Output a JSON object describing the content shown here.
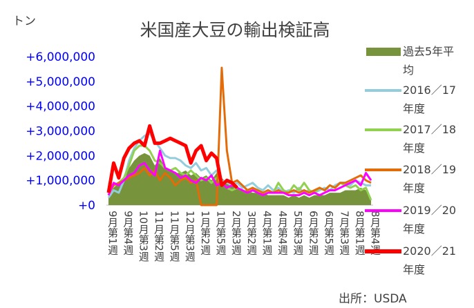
{
  "chart_data": {
    "type": "line",
    "title": "米国産大豆の輸出検証高",
    "unit_label": "トン",
    "source": "出所：USDA",
    "categories": [
      "9月第1週",
      null,
      null,
      "9月第4週",
      null,
      null,
      "10月第3週",
      null,
      null,
      "11月第2週",
      null,
      null,
      "11月第5週",
      null,
      null,
      "12月第3週",
      null,
      null,
      "1月第2週",
      null,
      null,
      "1月第5週",
      null,
      null,
      "2月第3週",
      null,
      null,
      "3月第2週",
      null,
      null,
      "4月第1週",
      null,
      null,
      "4月第4週",
      null,
      null,
      "5月第3週",
      null,
      null,
      "6月第2週",
      null,
      null,
      "6月第5週",
      null,
      null,
      "7月第3週",
      null,
      null,
      "8月第1週",
      null,
      null,
      "8月第4週"
    ],
    "ylim": [
      0,
      6000000
    ],
    "yticks": [
      {
        "value": 0,
        "label": "+0"
      },
      {
        "value": 1000000,
        "label": "+1,000,000"
      },
      {
        "value": 2000000,
        "label": "+2,000,000"
      },
      {
        "value": 3000000,
        "label": "+3,000,000"
      },
      {
        "value": 4000000,
        "label": "+4,000,000"
      },
      {
        "value": 5000000,
        "label": "+5,000,000"
      },
      {
        "value": 6000000,
        "label": "+6,000,000"
      }
    ],
    "legend": "right",
    "series": [
      {
        "name": "過去5年平均",
        "color": "#77933c",
        "kind": "area",
        "values": [
          400000,
          700000,
          900000,
          1100000,
          1500000,
          1800000,
          2000000,
          2100000,
          2000000,
          1600000,
          1900000,
          1500000,
          1400000,
          1300000,
          1300000,
          1400000,
          1200000,
          1300000,
          1100000,
          1200000,
          1000000,
          1300000,
          1100000,
          900000,
          900000,
          700000,
          600000,
          600000,
          500000,
          500000,
          500000,
          400000,
          400000,
          400000,
          400000,
          300000,
          400000,
          300000,
          400000,
          300000,
          400000,
          400000,
          400000,
          500000,
          500000,
          500000,
          600000,
          600000,
          600000,
          700000,
          600000,
          300000
        ]
      },
      {
        "name": "2016／17年度",
        "color": "#93cddd",
        "values": [
          300000,
          600000,
          500000,
          1000000,
          1800000,
          2300000,
          2600000,
          2800000,
          2900000,
          2600000,
          2300000,
          2000000,
          1900000,
          1900000,
          1800000,
          1600000,
          1500000,
          1700000,
          1400000,
          1500000,
          1200000,
          1400000,
          1000000,
          900000,
          800000,
          900000,
          700000,
          800000,
          900000,
          700000,
          600000,
          800000,
          600000,
          700000,
          500000,
          600000,
          500000,
          700000,
          500000,
          600000,
          500000,
          600000,
          700000,
          600000,
          800000,
          900000,
          900000,
          800000,
          1000000,
          900000,
          800000,
          800000
        ]
      },
      {
        "name": "2017／18年度",
        "color": "#92d050",
        "values": [
          400000,
          800000,
          900000,
          1100000,
          1600000,
          2200000,
          2400000,
          2400000,
          2200000,
          1800000,
          1700000,
          1500000,
          1400000,
          1500000,
          1300000,
          1200000,
          1400000,
          1200000,
          1000000,
          1100000,
          900000,
          1100000,
          900000,
          700000,
          600000,
          700000,
          600000,
          500000,
          600000,
          600000,
          500000,
          600000,
          500000,
          900000,
          600000,
          500000,
          800000,
          600000,
          900000,
          600000,
          500000,
          700000,
          600000,
          800000,
          700000,
          900000,
          800000,
          700000,
          800000,
          600000,
          700000,
          200000
        ]
      },
      {
        "name": "2018／19年度",
        "color": "#e36c09",
        "values": [
          500000,
          800000,
          900000,
          1000000,
          1100000,
          1200000,
          1300000,
          1500000,
          1200000,
          1400000,
          1000000,
          1300000,
          1100000,
          800000,
          1000000,
          1100000,
          900000,
          1000000,
          0,
          0,
          0,
          0,
          5550000,
          2200000,
          900000,
          1000000,
          800000,
          600000,
          700000,
          600000,
          500000,
          600000,
          500000,
          600000,
          500000,
          500000,
          600000,
          500000,
          600000,
          500000,
          600000,
          700000,
          600000,
          800000,
          700000,
          900000,
          900000,
          1000000,
          1100000,
          1200000,
          1000000,
          900000
        ]
      },
      {
        "name": "2019／20年度",
        "color": "#ff00ff",
        "values": [
          400000,
          900000,
          800000,
          1000000,
          1200000,
          1300000,
          1600000,
          1700000,
          1400000,
          1200000,
          2200000,
          1500000,
          1400000,
          1300000,
          1100000,
          1200000,
          1000000,
          900000,
          1100000,
          1000000,
          1200000,
          800000,
          900000,
          700000,
          800000,
          700000,
          600000,
          500000,
          600000,
          500000,
          400000,
          500000,
          500000,
          500000,
          500000,
          400000,
          400000,
          400000,
          500000,
          400000,
          500000,
          400000,
          500000,
          600000,
          600000,
          700000,
          800000,
          900000,
          1000000,
          800000,
          1300000,
          1000000
        ]
      },
      {
        "name": "2020／21年度",
        "color": "#ff0000",
        "values": [
          500000,
          1700000,
          1100000,
          1900000,
          2300000,
          2500000,
          2600000,
          2400000,
          3200000,
          2500000,
          2500000,
          2600000,
          2700000,
          2600000,
          2500000,
          2400000,
          1700000,
          2200000,
          2400000,
          1800000,
          2100000,
          1900000,
          800000,
          1000000,
          900000,
          700000,
          null,
          null,
          null,
          null,
          null,
          null,
          null,
          null,
          null,
          null,
          null,
          null,
          null,
          null,
          null,
          null,
          null,
          null,
          null,
          null,
          null,
          null,
          null,
          null,
          null,
          null
        ]
      }
    ]
  }
}
